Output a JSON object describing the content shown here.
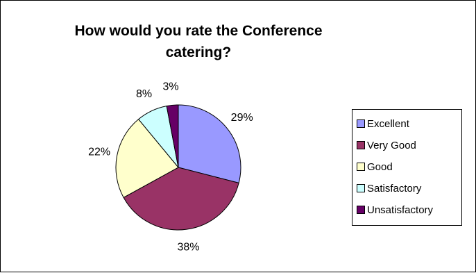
{
  "chart_data": {
    "type": "pie",
    "title": "How would you rate the Conference\ncatering?",
    "categories": [
      "Excellent",
      "Very Good",
      "Good",
      "Satisfactory",
      "Unsatisfactory"
    ],
    "values": [
      29,
      38,
      22,
      8,
      3
    ],
    "data_labels": [
      "29%",
      "38%",
      "22%",
      "8%",
      "3%"
    ],
    "colors": [
      "#9999FF",
      "#993366",
      "#FFFFCC",
      "#CCFFFF",
      "#660066"
    ],
    "legend_position": "right"
  }
}
